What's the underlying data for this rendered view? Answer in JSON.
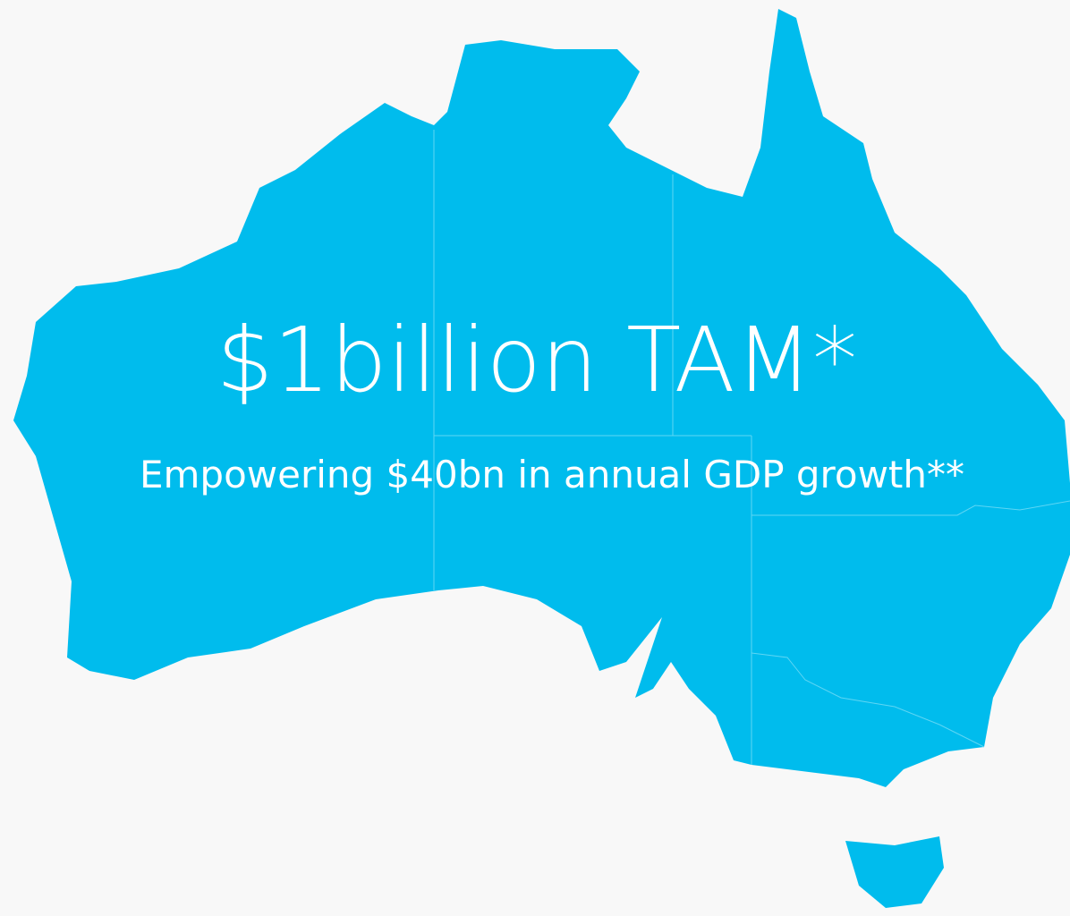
{
  "headline": "$1billion TAM*",
  "subheadline": "Empowering $40bn in annual GDP growth**"
}
